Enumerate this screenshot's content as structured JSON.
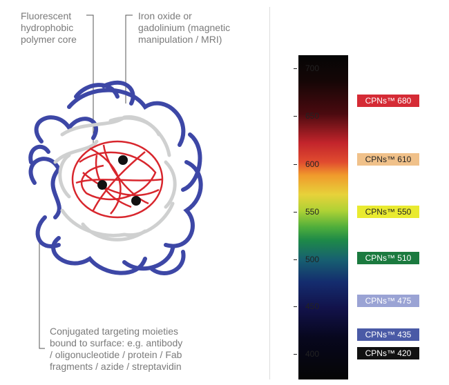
{
  "labels": {
    "core": "Fluorescent\nhydrophobic\npolymer core",
    "magnetic": "Iron oxide or\ngadolinium (magnetic\nmanipulation / MRI)",
    "surface": "Conjugated targeting moieties\nbound to surface: e.g. antibody\n/ oligonucleotide / protein / Fab\nfragments / azide / streptavidin"
  },
  "scale": {
    "ticks": [
      "700",
      "650",
      "600",
      "550",
      "500",
      "450",
      "400"
    ]
  },
  "badges": [
    {
      "label": "CPNs™ 680",
      "bg": "#d52b35",
      "fg": "#ffffff"
    },
    {
      "label": "CPNs™ 610",
      "bg": "#f0c18a",
      "fg": "#222222"
    },
    {
      "label": "CPNs™ 550",
      "bg": "#e9ea30",
      "fg": "#222222"
    },
    {
      "label": "CPNs™ 510",
      "bg": "#1b7a3f",
      "fg": "#ffffff"
    },
    {
      "label": "CPNs™ 475",
      "bg": "#9aa3d4",
      "fg": "#ffffff"
    },
    {
      "label": "CPNs™ 435",
      "bg": "#4a5aa6",
      "fg": "#ffffff"
    },
    {
      "label": "CPNs™ 420",
      "bg": "#111111",
      "fg": "#ffffff"
    }
  ],
  "colors": {
    "shell": "#3d47a6",
    "mid": "#cfd0d0",
    "core": "#d8262d"
  }
}
